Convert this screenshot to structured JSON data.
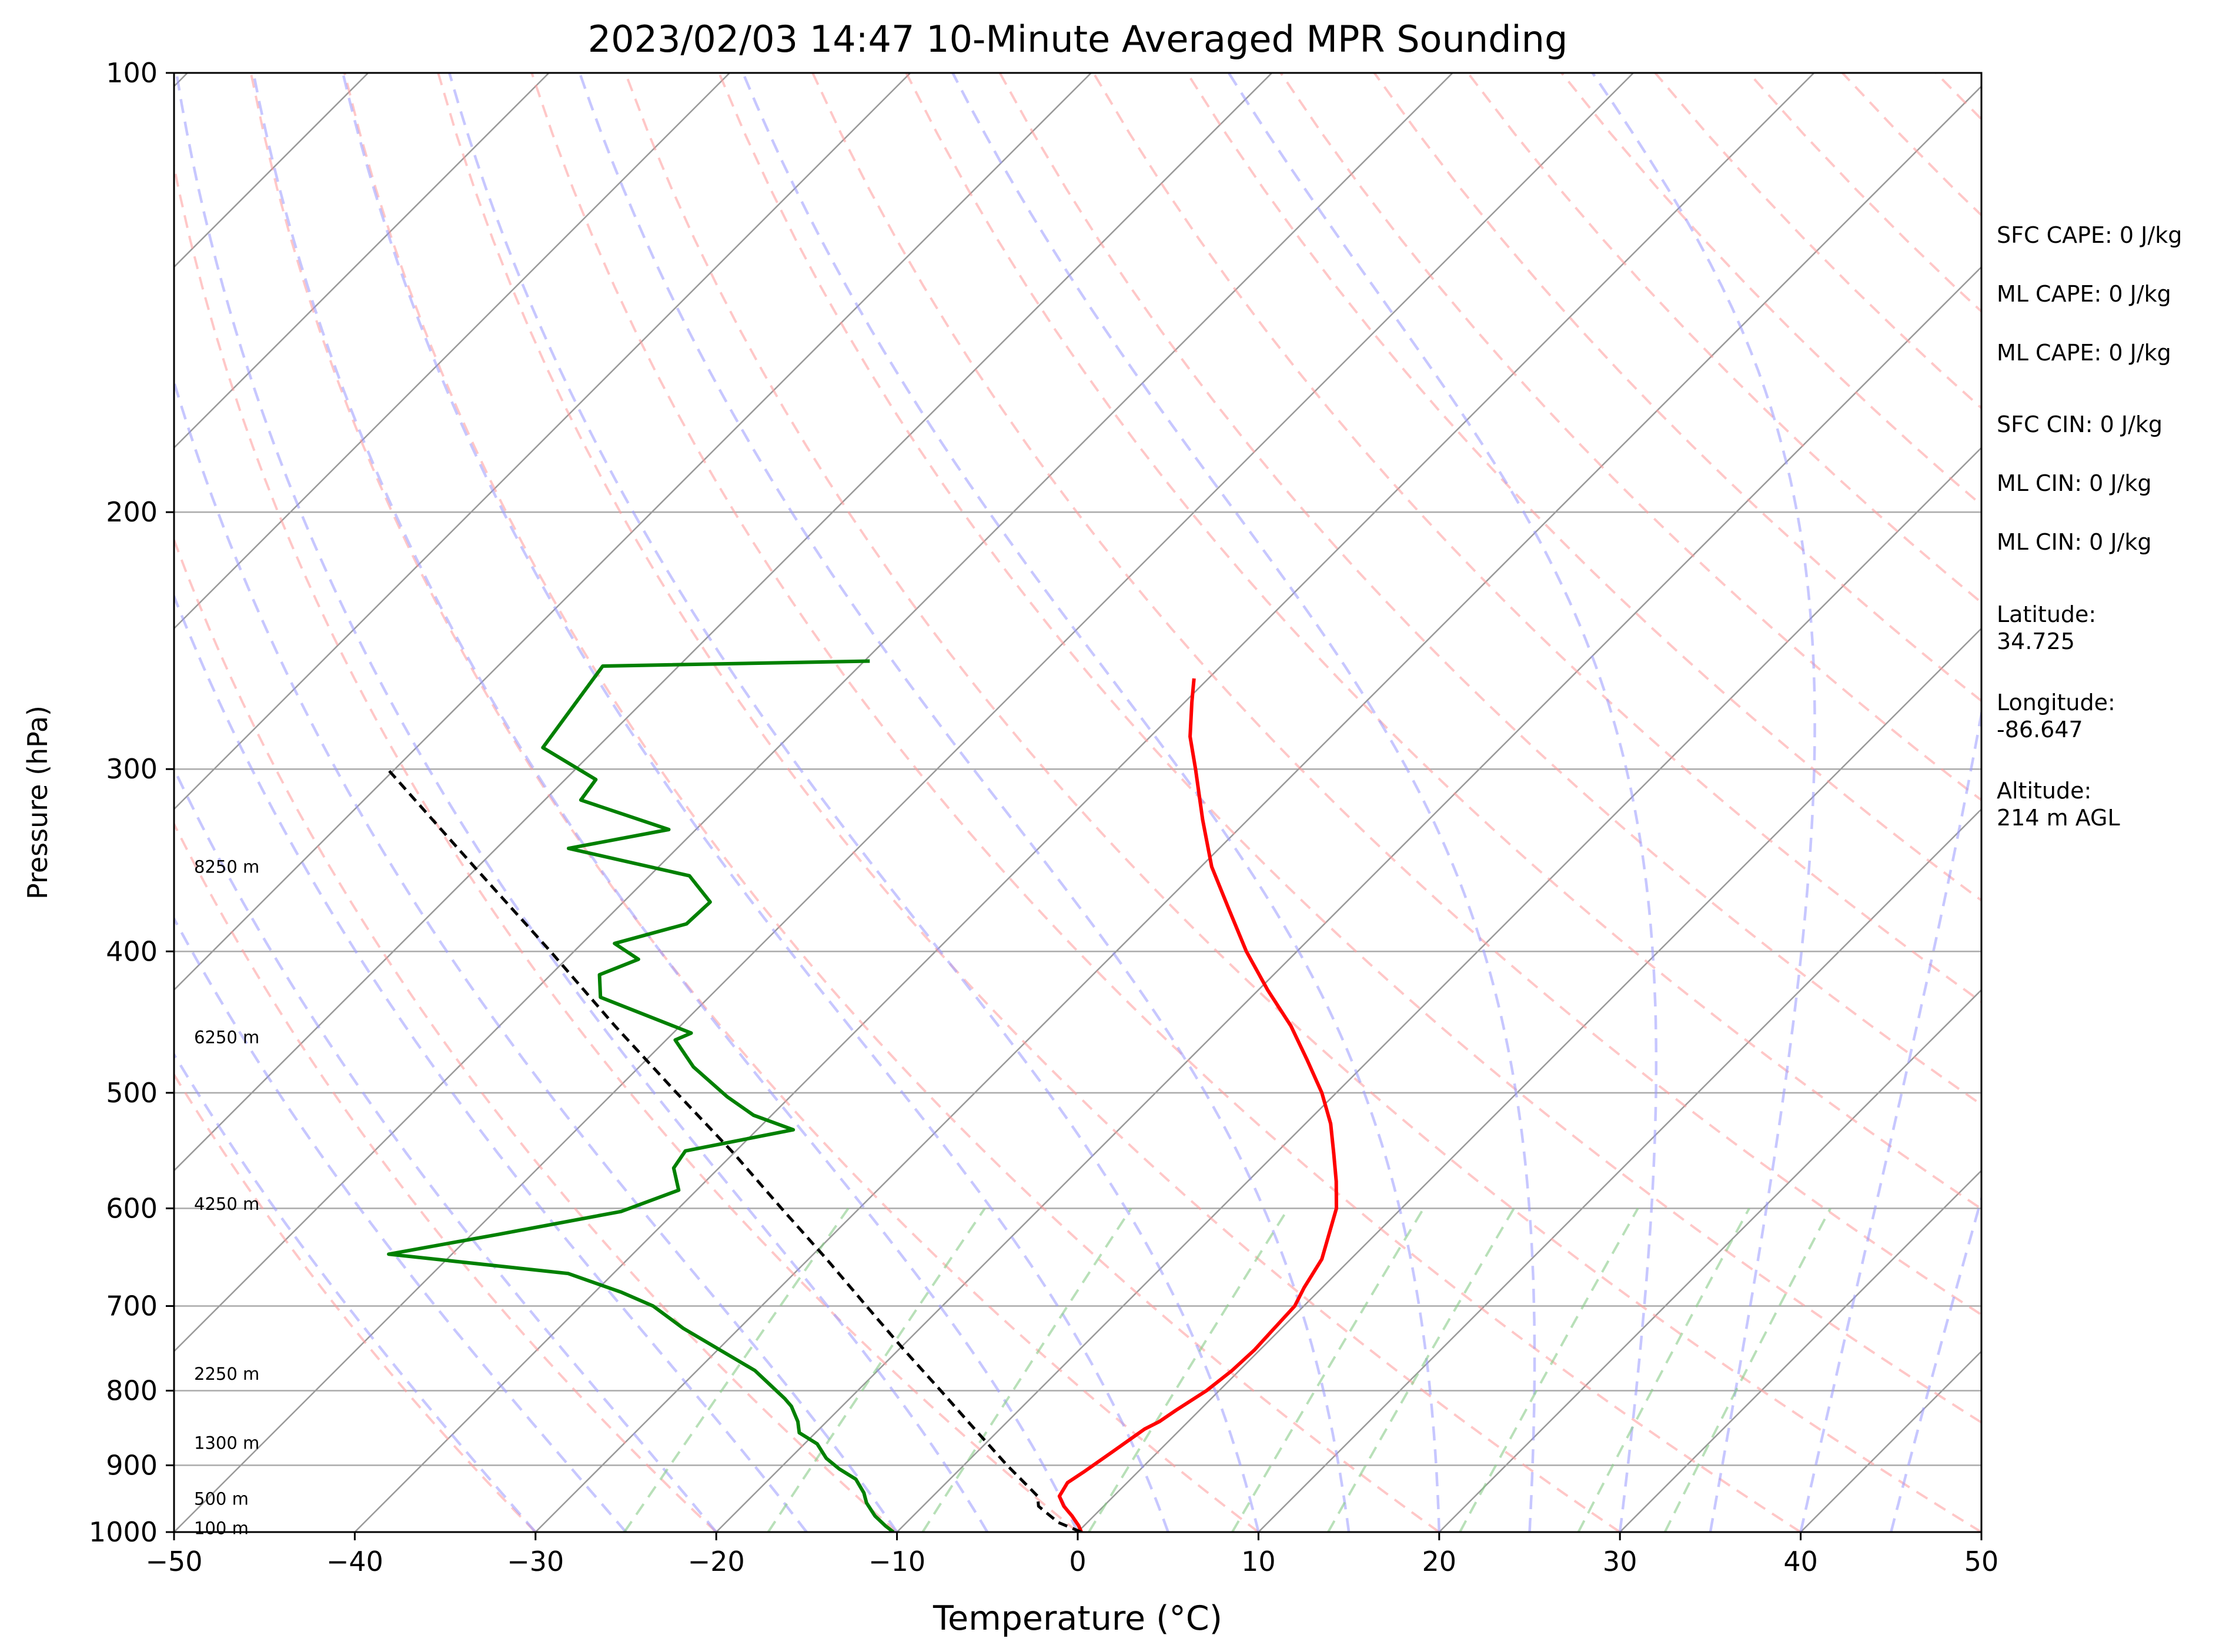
{
  "chart_data": {
    "type": "skew-t",
    "title": "2023/02/03 14:47 10-Minute Averaged MPR Sounding",
    "xlabel": "Temperature (°C)",
    "ylabel": "Pressure (hPa)",
    "xlim": [
      -50,
      50
    ],
    "ylim": [
      1000,
      100
    ],
    "y_scale": "log",
    "grid": true,
    "x_ticks": [
      "−50",
      "−40",
      "−30",
      "−20",
      "−10",
      "0",
      "10",
      "20",
      "30",
      "40",
      "50"
    ],
    "x_tick_values": [
      -50,
      -40,
      -30,
      -20,
      -10,
      0,
      10,
      20,
      30,
      40,
      50
    ],
    "y_ticks": [
      "100",
      "200",
      "300",
      "400",
      "500",
      "600",
      "700",
      "800",
      "900",
      "1000"
    ],
    "y_tick_values": [
      100,
      200,
      300,
      400,
      500,
      600,
      700,
      800,
      900,
      1000
    ],
    "colors": {
      "temperature": "#ff0000",
      "dewpoint": "#008000",
      "parcel": "#000000",
      "dry_adiabats": "#ff9999",
      "moist_adiabats": "#9999ff",
      "mixing_ratio": "#88cc88",
      "isotherms": "#999999",
      "isobars": "#aaaaaa"
    },
    "series": [
      {
        "points": [
          [
            1000,
            0.2
          ],
          [
            990,
            -0.3
          ],
          [
            975,
            -1.2
          ],
          [
            960,
            -2.2
          ],
          [
            945,
            -3.0
          ],
          [
            925,
            -3.3
          ],
          [
            910,
            -3.0
          ],
          [
            880,
            -2.5
          ],
          [
            850,
            -2.0
          ],
          [
            840,
            -1.6
          ],
          [
            825,
            -1.3
          ],
          [
            800,
            -0.7
          ],
          [
            775,
            -0.4
          ],
          [
            750,
            -0.3
          ],
          [
            725,
            -0.4
          ],
          [
            700,
            -0.5
          ],
          [
            680,
            -1.0
          ],
          [
            650,
            -1.6
          ],
          [
            600,
            -3.6
          ],
          [
            575,
            -5.1
          ],
          [
            550,
            -6.8
          ],
          [
            525,
            -8.6
          ],
          [
            500,
            -10.8
          ],
          [
            475,
            -13.4
          ],
          [
            450,
            -16.2
          ],
          [
            425,
            -19.5
          ],
          [
            400,
            -22.8
          ],
          [
            375,
            -26.0
          ],
          [
            350,
            -29.4
          ],
          [
            325,
            -32.5
          ],
          [
            300,
            -35.7
          ],
          [
            285,
            -37.8
          ],
          [
            270,
            -39.6
          ],
          [
            260,
            -40.8
          ]
        ]
      },
      {
        "points": [
          [
            1000,
            -10.2
          ],
          [
            990,
            -11.0
          ],
          [
            975,
            -12.1
          ],
          [
            955,
            -13.3
          ],
          [
            940,
            -14.0
          ],
          [
            920,
            -15.2
          ],
          [
            905,
            -16.7
          ],
          [
            890,
            -18.0
          ],
          [
            870,
            -19.3
          ],
          [
            855,
            -20.9
          ],
          [
            840,
            -21.6
          ],
          [
            820,
            -22.8
          ],
          [
            810,
            -23.6
          ],
          [
            800,
            -24.5
          ],
          [
            775,
            -26.8
          ],
          [
            750,
            -29.9
          ],
          [
            725,
            -33.1
          ],
          [
            700,
            -36.0
          ],
          [
            685,
            -38.5
          ],
          [
            665,
            -42.5
          ],
          [
            645,
            -53.5
          ],
          [
            625,
            -48.5
          ],
          [
            603,
            -43.0
          ],
          [
            583,
            -41.0
          ],
          [
            563,
            -42.5
          ],
          [
            548,
            -42.8
          ],
          [
            530,
            -38.0
          ],
          [
            518,
            -41.0
          ],
          [
            503,
            -43.5
          ],
          [
            480,
            -47.0
          ],
          [
            460,
            -49.5
          ],
          [
            455,
            -49.0
          ],
          [
            430,
            -56.0
          ],
          [
            415,
            -57.3
          ],
          [
            405,
            -56.0
          ],
          [
            395,
            -58.2
          ],
          [
            383,
            -55.3
          ],
          [
            370,
            -55.2
          ],
          [
            355,
            -57.8
          ],
          [
            340,
            -66.0
          ],
          [
            330,
            -61.5
          ],
          [
            315,
            -68.0
          ],
          [
            305,
            -68.3
          ],
          [
            290,
            -73.0
          ],
          [
            255,
            -74.2
          ],
          [
            253,
            -59.7
          ]
        ]
      },
      {
        "points": [
          [
            1000,
            0.2
          ],
          [
            985,
            -1.6
          ],
          [
            960,
            -3.6
          ],
          [
            945,
            -4.2
          ],
          [
            900,
            -7.6
          ],
          [
            850,
            -11.4
          ],
          [
            800,
            -15.4
          ],
          [
            750,
            -19.7
          ],
          [
            700,
            -24.2
          ],
          [
            650,
            -29.0
          ],
          [
            600,
            -34.3
          ],
          [
            550,
            -40.0
          ],
          [
            500,
            -46.5
          ],
          [
            450,
            -53.6
          ],
          [
            400,
            -61.3
          ],
          [
            350,
            -70.2
          ],
          [
            300,
            -80.4
          ]
        ]
      }
    ],
    "height_labels": [
      {
        "pressure": 994,
        "label": "100 m"
      },
      {
        "pressure": 949,
        "label": "500 m"
      },
      {
        "pressure": 869,
        "label": "1300 m"
      },
      {
        "pressure": 779,
        "label": "2250 m"
      },
      {
        "pressure": 596,
        "label": "4250 m"
      },
      {
        "pressure": 458,
        "label": "6250 m"
      },
      {
        "pressure": 350,
        "label": "8250 m"
      }
    ],
    "indices": [
      "SFC CAPE: 0 J/kg",
      "ML CAPE: 0 J/kg",
      "ML CAPE: 0 J/kg",
      "SFC CIN: 0 J/kg",
      "ML CIN: 0 J/kg",
      "ML CIN: 0 J/kg"
    ],
    "station": [
      [
        "Latitude:",
        "34.725"
      ],
      [
        "Longitude:",
        "-86.647"
      ],
      [
        "Altitude:",
        "214 m AGL"
      ]
    ]
  }
}
